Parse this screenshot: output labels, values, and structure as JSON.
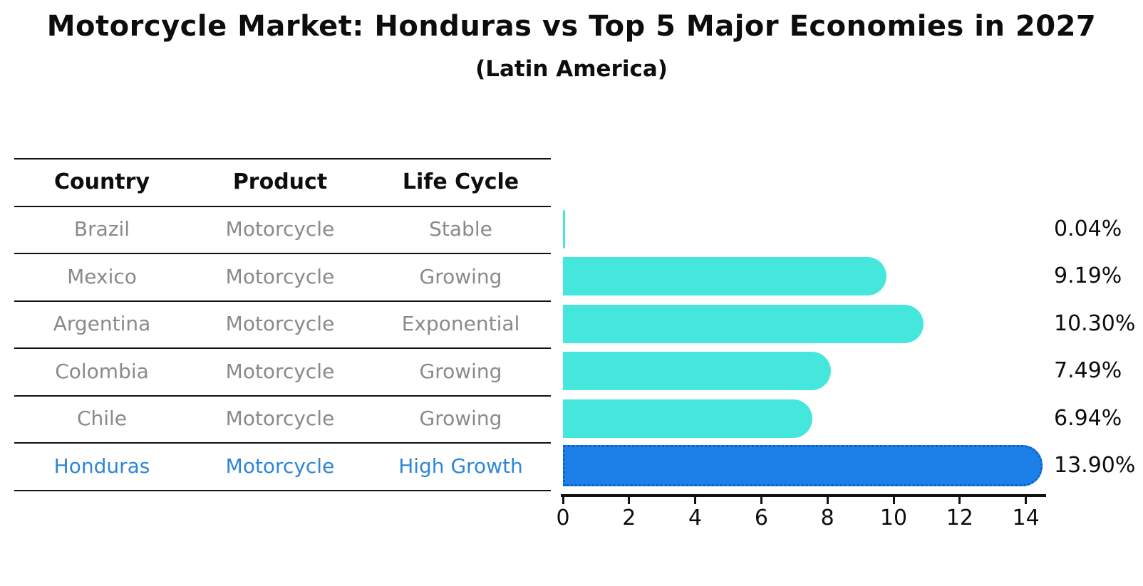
{
  "title": "Motorcycle Market: Honduras vs Top 5 Major Economies in 2027",
  "subtitle": "(Latin America)",
  "table": {
    "headers": [
      "Country",
      "Product",
      "Life Cycle"
    ],
    "rows": [
      {
        "country": "Brazil",
        "product": "Motorcycle",
        "life_cycle": "Stable",
        "highlighted": false
      },
      {
        "country": "Mexico",
        "product": "Motorcycle",
        "life_cycle": "Growing",
        "highlighted": false
      },
      {
        "country": "Argentina",
        "product": "Motorcycle",
        "life_cycle": "Exponential",
        "highlighted": false
      },
      {
        "country": "Colombia",
        "product": "Motorcycle",
        "life_cycle": "Growing",
        "highlighted": false
      },
      {
        "country": "Chile",
        "product": "Motorcycle",
        "life_cycle": "Growing",
        "highlighted": false
      },
      {
        "country": "Honduras",
        "product": "Motorcycle",
        "life_cycle": "High Growth",
        "highlighted": true
      }
    ]
  },
  "chart_data": {
    "type": "bar",
    "orientation": "horizontal",
    "categories": [
      "Brazil",
      "Mexico",
      "Argentina",
      "Colombia",
      "Chile",
      "Honduras"
    ],
    "values": [
      0.04,
      9.19,
      10.3,
      7.49,
      6.94,
      13.9
    ],
    "value_labels": [
      "0.04%",
      "9.19%",
      "10.30%",
      "7.49%",
      "6.94%",
      "13.90%"
    ],
    "xticks": [
      0,
      2,
      4,
      6,
      8,
      10,
      12,
      14
    ],
    "xlim": [
      0,
      14.6
    ],
    "grid": false,
    "legend": "none",
    "bar_color": "#45e6db",
    "highlight_index": 5,
    "highlight_bar_color": "#1d7fe8",
    "highlight_edge_color": "#0d5fc9",
    "highlight_text_color": "#2e86d6",
    "axis_color": "#111111",
    "label_color": "#0d0d0d",
    "muted_text_color": "#8a8a8a"
  }
}
